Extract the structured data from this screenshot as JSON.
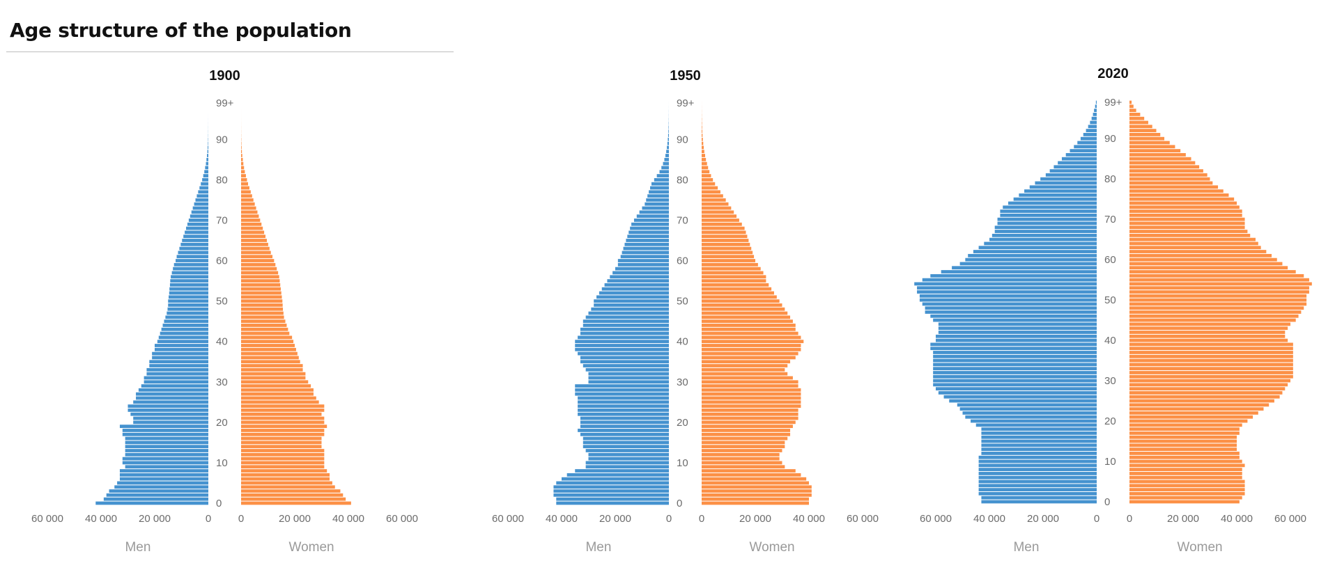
{
  "title": "Age structure of the population",
  "colors": {
    "men": "#4592cf",
    "women": "#fc9046",
    "tick_text": "#6b6b6b",
    "label_text": "#9a9a9a",
    "year_text": "#111111"
  },
  "chart_data": [
    {
      "type": "bar",
      "subtitle": "1900",
      "orientation": "horizontal-pyramid",
      "y_ticks": [
        "0",
        "10",
        "20",
        "30",
        "40",
        "50",
        "60",
        "70",
        "80",
        "90",
        "99+"
      ],
      "men_axis_ticks": [
        "60 000",
        "40 000",
        "20 000",
        "0"
      ],
      "women_axis_ticks": [
        "0",
        "20 000",
        "40 000",
        "60 000"
      ],
      "xlim": [
        0,
        60000
      ],
      "men_label": "Men",
      "women_label": "Women",
      "series": [
        {
          "name": "Men",
          "values": [
            42000,
            39000,
            38000,
            37000,
            35000,
            34000,
            33000,
            33000,
            33000,
            31000,
            32000,
            32000,
            31000,
            31000,
            31000,
            31000,
            31000,
            32000,
            32000,
            33000,
            28000,
            28000,
            29000,
            30000,
            30000,
            28000,
            27000,
            27000,
            26000,
            25000,
            24000,
            24000,
            23000,
            23000,
            22000,
            22000,
            21000,
            21000,
            20000,
            20000,
            19000,
            18500,
            18000,
            17500,
            17000,
            16500,
            16000,
            15500,
            15200,
            15000,
            15000,
            14800,
            14600,
            14500,
            14300,
            14200,
            14000,
            13600,
            13200,
            12800,
            12200,
            11800,
            11300,
            10800,
            10300,
            9800,
            9300,
            8800,
            8300,
            7800,
            7300,
            6800,
            6300,
            5800,
            5300,
            4800,
            4300,
            3800,
            3300,
            2800,
            2300,
            1900,
            1500,
            1200,
            900,
            700,
            500,
            350,
            250,
            150,
            100,
            60,
            40,
            25,
            15,
            10,
            5,
            3,
            2,
            1
          ]
        },
        {
          "name": "Women",
          "values": [
            41000,
            39000,
            38000,
            37000,
            35000,
            34000,
            33000,
            33000,
            32000,
            31000,
            31000,
            31000,
            31000,
            31000,
            30000,
            30000,
            30000,
            31000,
            31000,
            32000,
            31000,
            31000,
            30000,
            31000,
            31000,
            29000,
            28000,
            27000,
            27000,
            26000,
            25000,
            24000,
            24000,
            23000,
            23000,
            22000,
            21500,
            21000,
            20500,
            20000,
            19500,
            19000,
            18000,
            17500,
            17000,
            16500,
            16000,
            15800,
            15600,
            15500,
            15400,
            15200,
            15000,
            14800,
            14600,
            14400,
            14200,
            13800,
            13300,
            12800,
            12300,
            11700,
            11100,
            10600,
            10100,
            9600,
            9100,
            8600,
            8100,
            7600,
            7100,
            6600,
            6100,
            5600,
            5100,
            4600,
            4100,
            3600,
            3100,
            2600,
            2200,
            1800,
            1400,
            1100,
            850,
            650,
            450,
            300,
            200,
            130,
            80,
            50,
            30,
            20,
            12,
            8,
            4,
            2,
            1,
            1
          ]
        }
      ]
    },
    {
      "type": "bar",
      "subtitle": "1950",
      "orientation": "horizontal-pyramid",
      "y_ticks": [
        "0",
        "10",
        "20",
        "30",
        "40",
        "50",
        "60",
        "70",
        "80",
        "90",
        "99+"
      ],
      "men_axis_ticks": [
        "60 000",
        "40 000",
        "20 000",
        "0"
      ],
      "women_axis_ticks": [
        "0",
        "20 000",
        "40 000",
        "60 000"
      ],
      "xlim": [
        0,
        60000
      ],
      "men_label": "Men",
      "women_label": "Women",
      "series": [
        {
          "name": "Men",
          "values": [
            42000,
            42000,
            43000,
            43000,
            43000,
            42000,
            40000,
            38000,
            35000,
            31000,
            31000,
            30000,
            30000,
            31000,
            32000,
            32000,
            32000,
            33000,
            34000,
            33000,
            33000,
            33000,
            34000,
            34000,
            34000,
            34000,
            34000,
            35000,
            35000,
            35000,
            30000,
            30000,
            30000,
            31000,
            32000,
            33000,
            33000,
            34000,
            35000,
            35000,
            35000,
            34000,
            33000,
            33000,
            32000,
            32000,
            31000,
            30000,
            29000,
            28000,
            28000,
            27000,
            26000,
            25000,
            24000,
            23000,
            22000,
            21000,
            20000,
            19000,
            19000,
            18000,
            17500,
            17000,
            16500,
            16000,
            15500,
            15000,
            14500,
            14000,
            13000,
            12000,
            11000,
            10000,
            9000,
            8500,
            8000,
            7500,
            7000,
            6500,
            5500,
            4500,
            3500,
            2800,
            2200,
            1700,
            1300,
            1000,
            750,
            550,
            400,
            280,
            190,
            130,
            80,
            50,
            30,
            20,
            10,
            5
          ]
        },
        {
          "name": "Women",
          "values": [
            40000,
            40000,
            41000,
            41000,
            41000,
            40000,
            39000,
            37000,
            35000,
            31000,
            30000,
            29000,
            29000,
            30000,
            31000,
            31000,
            32000,
            33000,
            33000,
            34000,
            35000,
            36000,
            36000,
            36000,
            37000,
            37000,
            37000,
            37000,
            37000,
            36000,
            36000,
            34000,
            32000,
            31000,
            32000,
            33000,
            35000,
            36000,
            37000,
            37000,
            38000,
            37000,
            36000,
            35000,
            35000,
            34000,
            33000,
            32000,
            31000,
            30000,
            29000,
            28000,
            27000,
            26000,
            25000,
            24000,
            24000,
            23000,
            22000,
            21000,
            20000,
            19500,
            19000,
            18500,
            18000,
            17500,
            17000,
            16500,
            16000,
            15000,
            14000,
            13000,
            12000,
            11000,
            10000,
            9000,
            8000,
            7000,
            6000,
            5000,
            4200,
            3500,
            2900,
            2400,
            2000,
            1600,
            1300,
            1000,
            800,
            600,
            450,
            330,
            240,
            170,
            120,
            80,
            50,
            30,
            15,
            8
          ]
        }
      ]
    },
    {
      "type": "bar",
      "subtitle": "2020",
      "orientation": "horizontal-pyramid",
      "y_ticks": [
        "0",
        "10",
        "20",
        "30",
        "40",
        "50",
        "60",
        "70",
        "80",
        "90",
        "99+"
      ],
      "men_axis_ticks": [
        "60 000",
        "40 000",
        "20 000",
        "0"
      ],
      "women_axis_ticks": [
        "0",
        "20 000",
        "40 000",
        "60 000"
      ],
      "xlim": [
        0,
        60000
      ],
      "men_label": "Men",
      "women_label": "Women",
      "series": [
        {
          "name": "Men",
          "values": [
            43000,
            43000,
            44000,
            44000,
            44000,
            44000,
            44000,
            44000,
            44000,
            44000,
            44000,
            44000,
            43000,
            43000,
            43000,
            43000,
            43000,
            43000,
            43000,
            45000,
            47000,
            49000,
            50000,
            51000,
            52000,
            55000,
            57000,
            59000,
            60000,
            61000,
            61000,
            61000,
            61000,
            61000,
            61000,
            61000,
            61000,
            61000,
            62000,
            62000,
            60000,
            60000,
            59000,
            59000,
            59000,
            61000,
            62000,
            64000,
            64000,
            65000,
            66000,
            66000,
            67000,
            67000,
            68000,
            65000,
            62000,
            58000,
            54000,
            51000,
            49000,
            48000,
            46000,
            44000,
            42000,
            40000,
            39000,
            38000,
            38000,
            37000,
            37000,
            36000,
            36000,
            35000,
            33000,
            31000,
            29000,
            27000,
            25000,
            23000,
            21000,
            19000,
            17500,
            16000,
            14500,
            13000,
            11500,
            10000,
            8500,
            7200,
            6000,
            5000,
            4000,
            3200,
            2500,
            1900,
            1400,
            1000,
            600,
            300
          ]
        },
        {
          "name": "Women",
          "values": [
            41000,
            42000,
            43000,
            43000,
            43000,
            43000,
            42000,
            42000,
            42000,
            43000,
            42000,
            41000,
            41000,
            40000,
            40000,
            40000,
            40000,
            41000,
            41000,
            42000,
            44000,
            46000,
            48000,
            50000,
            52000,
            54000,
            56000,
            57000,
            58000,
            59000,
            60000,
            61000,
            61000,
            61000,
            61000,
            61000,
            61000,
            61000,
            61000,
            61000,
            59000,
            58000,
            58000,
            59000,
            60000,
            62000,
            63000,
            64000,
            65000,
            66000,
            66000,
            66000,
            67000,
            67000,
            68000,
            67000,
            65000,
            62000,
            59000,
            57000,
            55000,
            53000,
            51000,
            49000,
            48000,
            47000,
            45000,
            44000,
            43000,
            43000,
            43000,
            42000,
            42000,
            41000,
            40000,
            39000,
            37000,
            35000,
            33000,
            31000,
            30000,
            29000,
            27500,
            26000,
            24500,
            23000,
            21000,
            19000,
            17000,
            15000,
            13000,
            11500,
            10000,
            8500,
            7000,
            5500,
            4000,
            2500,
            1500,
            800
          ]
        }
      ]
    }
  ]
}
